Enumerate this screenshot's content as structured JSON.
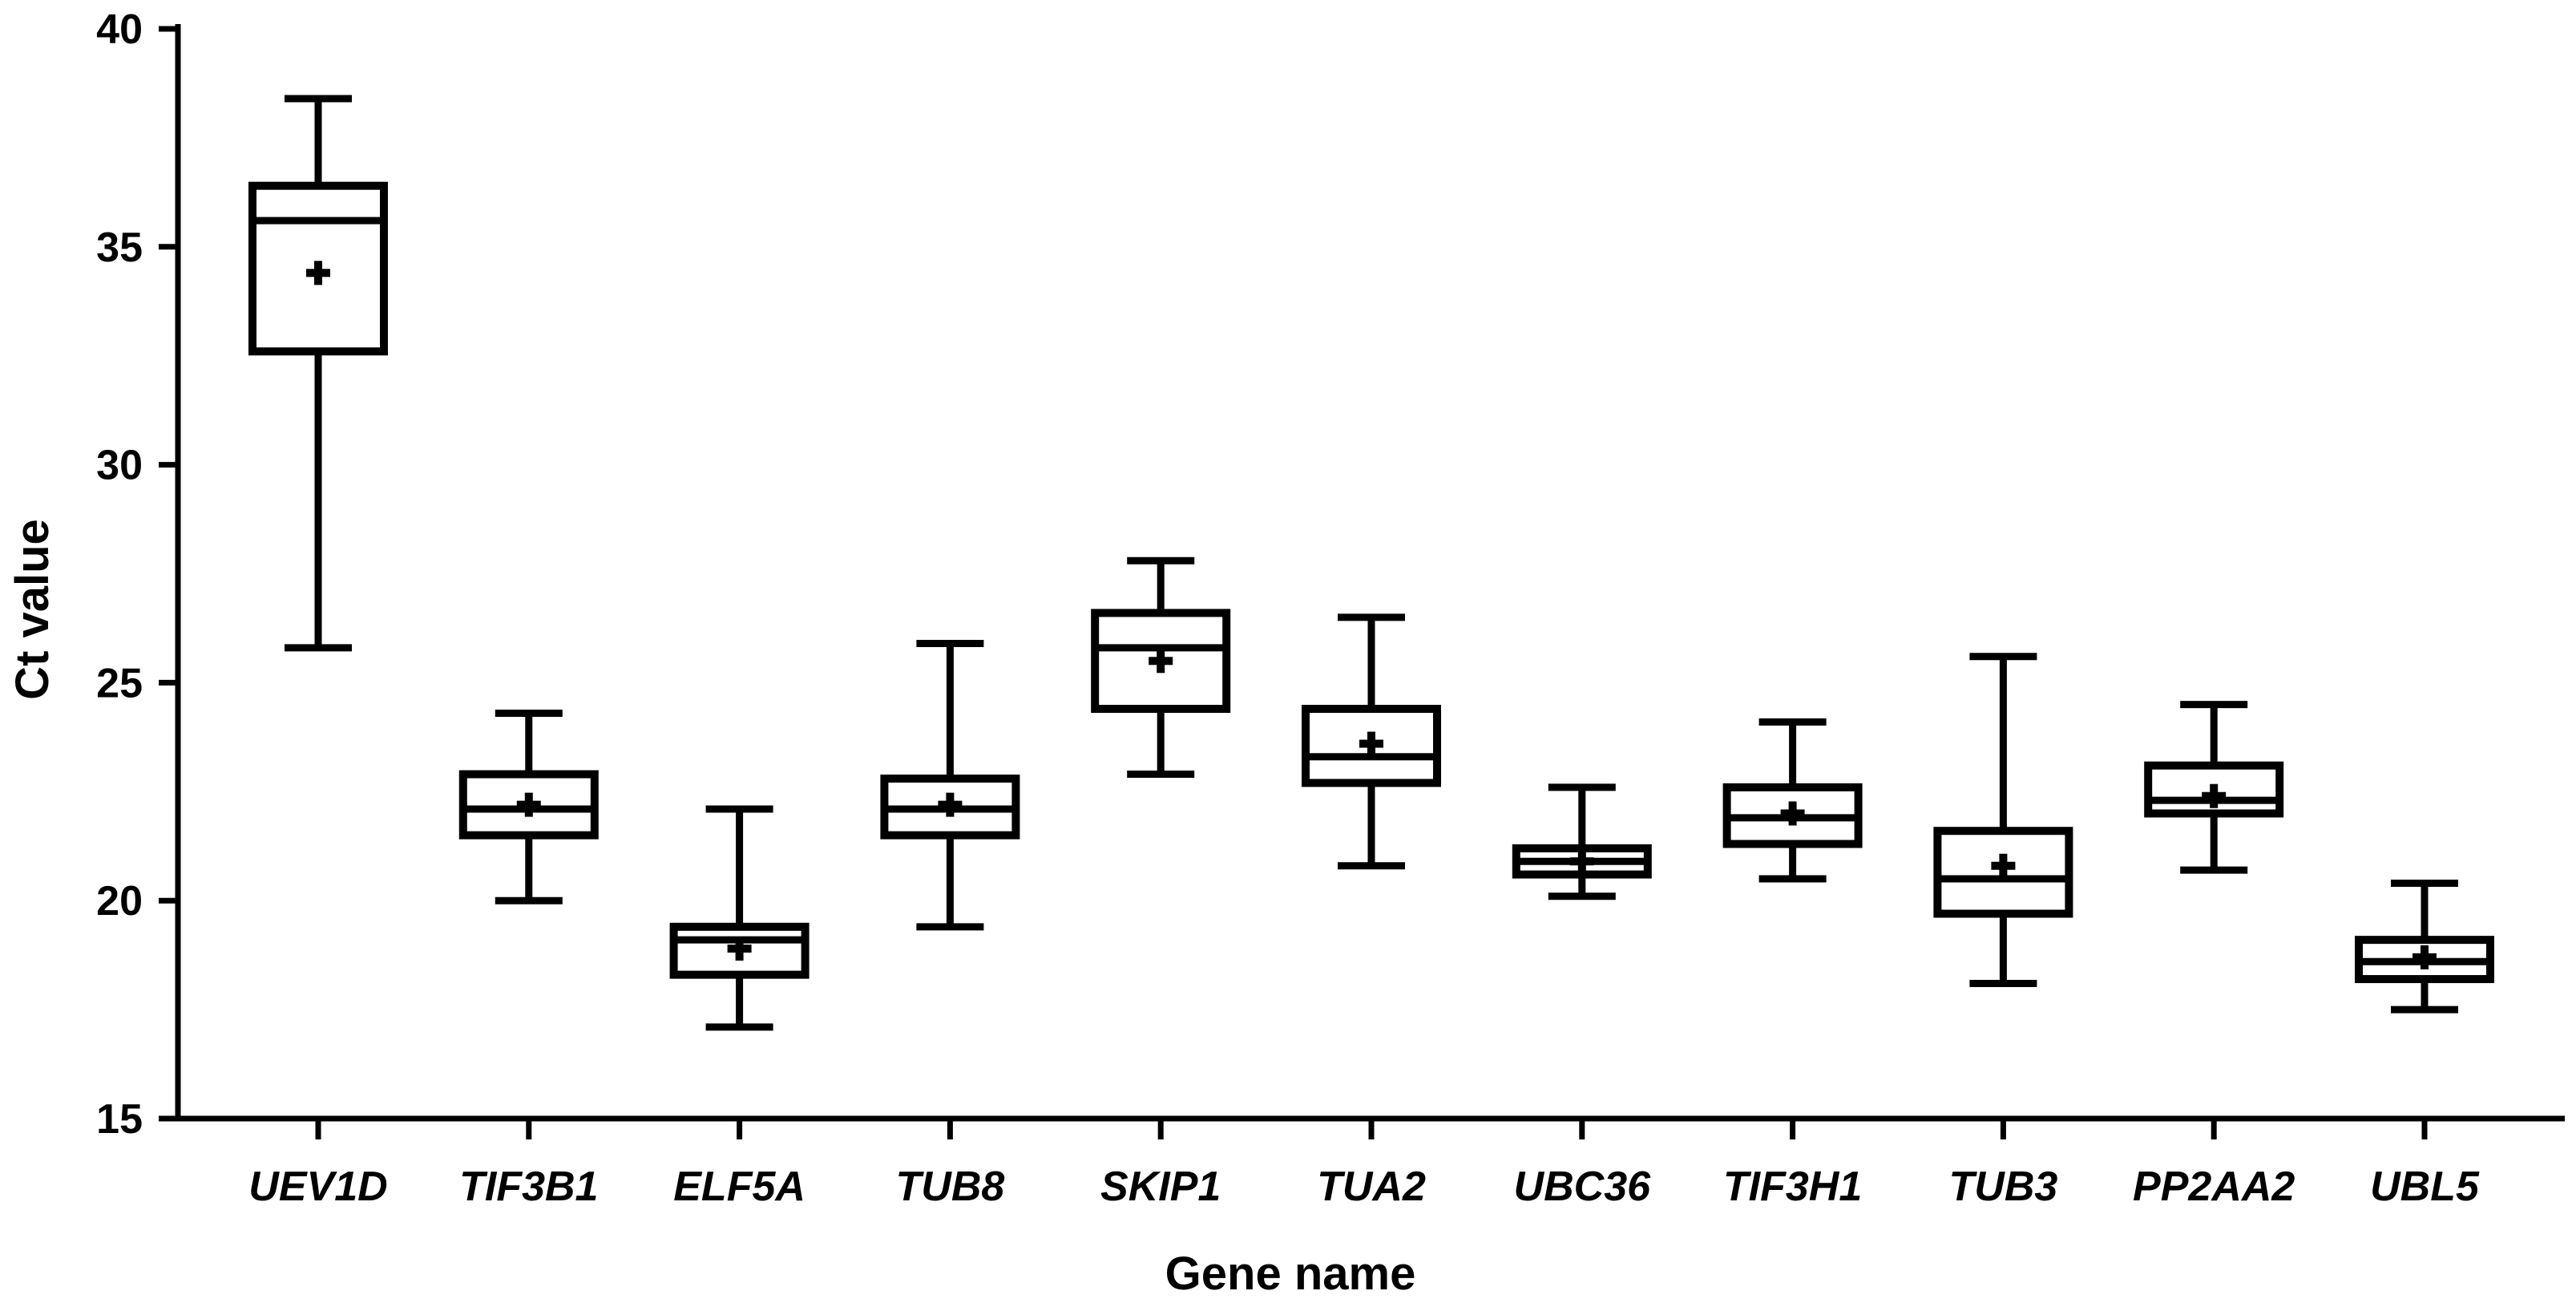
{
  "chart_data": {
    "type": "box",
    "xlabel": "Gene name",
    "ylabel": "Ct value",
    "ylim": [
      15,
      40
    ],
    "yticks": [
      15,
      20,
      25,
      30,
      35,
      40
    ],
    "grid": false,
    "categories": [
      "UEV1D",
      "TIF3B1",
      "ELF5A",
      "TUB8",
      "SKIP1",
      "TUA2",
      "UBC36",
      "TIF3H1",
      "TUB3",
      "PP2AA2",
      "UBL5"
    ],
    "boxes": [
      {
        "min": 25.8,
        "q1": 32.6,
        "median": 35.6,
        "q3": 36.4,
        "max": 38.4,
        "mean": 34.4
      },
      {
        "min": 20.0,
        "q1": 21.5,
        "median": 22.1,
        "q3": 22.9,
        "max": 24.3,
        "mean": 22.2
      },
      {
        "min": 17.1,
        "q1": 18.3,
        "median": 19.1,
        "q3": 19.4,
        "max": 22.1,
        "mean": 18.9
      },
      {
        "min": 19.4,
        "q1": 21.5,
        "median": 22.1,
        "q3": 22.8,
        "max": 25.9,
        "mean": 22.2
      },
      {
        "min": 22.9,
        "q1": 24.4,
        "median": 25.8,
        "q3": 26.6,
        "max": 27.8,
        "mean": 25.5
      },
      {
        "min": 20.8,
        "q1": 22.7,
        "median": 23.3,
        "q3": 24.4,
        "max": 26.5,
        "mean": 23.6
      },
      {
        "min": 20.1,
        "q1": 20.6,
        "median": 20.9,
        "q3": 21.2,
        "max": 22.6,
        "mean": 20.9
      },
      {
        "min": 20.5,
        "q1": 21.3,
        "median": 21.9,
        "q3": 22.6,
        "max": 24.1,
        "mean": 22.0
      },
      {
        "min": 18.1,
        "q1": 19.7,
        "median": 20.5,
        "q3": 21.6,
        "max": 25.6,
        "mean": 20.8
      },
      {
        "min": 20.7,
        "q1": 22.0,
        "median": 22.3,
        "q3": 23.1,
        "max": 24.5,
        "mean": 22.4
      },
      {
        "min": 17.5,
        "q1": 18.2,
        "median": 18.6,
        "q3": 19.1,
        "max": 20.4,
        "mean": 18.7
      }
    ]
  }
}
